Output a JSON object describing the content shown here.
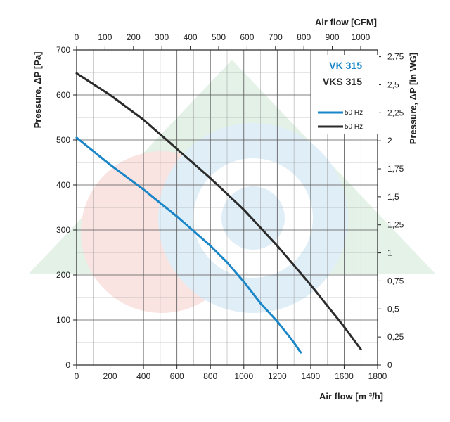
{
  "chart_data": {
    "type": "line",
    "x_bottom": {
      "label": "Air flow [m ³/h]",
      "range": [
        0,
        1800
      ],
      "ticks": [
        0,
        200,
        400,
        600,
        800,
        1000,
        1200,
        1400,
        1600,
        1800
      ]
    },
    "x_top": {
      "label": "Air flow [CFM]",
      "ticks": [
        0,
        100,
        200,
        300,
        400,
        500,
        600,
        700,
        800,
        900,
        1000
      ]
    },
    "y_left": {
      "label": "Pressure, ΔP [Pa]",
      "range": [
        0,
        700
      ],
      "ticks": [
        0,
        100,
        200,
        300,
        400,
        500,
        600,
        700
      ]
    },
    "y_right": {
      "label": "Pressure, ΔP [in WG]",
      "ticks": [
        "0",
        "0,25",
        "0,5",
        "0,75",
        "1",
        "1,25",
        "1,5",
        "1,75",
        "2",
        "2,25",
        "2,5",
        "2,75"
      ],
      "tick_values": [
        0,
        0.25,
        0.5,
        0.75,
        1,
        1.25,
        1.5,
        1.75,
        2,
        2.25,
        2.5,
        2.75
      ]
    },
    "grid": true,
    "legend_position": "top-right",
    "legend_titles": [
      {
        "text": "VK 315",
        "color": "#1a86c8"
      },
      {
        "text": "VKS 315",
        "color": "#2b2b2b"
      }
    ],
    "series": [
      {
        "name": "50 Hz",
        "color": "#1a86c8",
        "x": [
          0,
          200,
          400,
          600,
          800,
          900,
          1000,
          1100,
          1200,
          1300,
          1340
        ],
        "y": [
          505,
          445,
          390,
          330,
          265,
          228,
          185,
          137,
          97,
          50,
          28
        ]
      },
      {
        "name": "50 Hz",
        "color": "#2b2b2b",
        "x": [
          0,
          200,
          400,
          600,
          800,
          1000,
          1200,
          1400,
          1600,
          1700
        ],
        "y": [
          648,
          600,
          545,
          480,
          415,
          345,
          265,
          178,
          85,
          35
        ]
      }
    ]
  }
}
